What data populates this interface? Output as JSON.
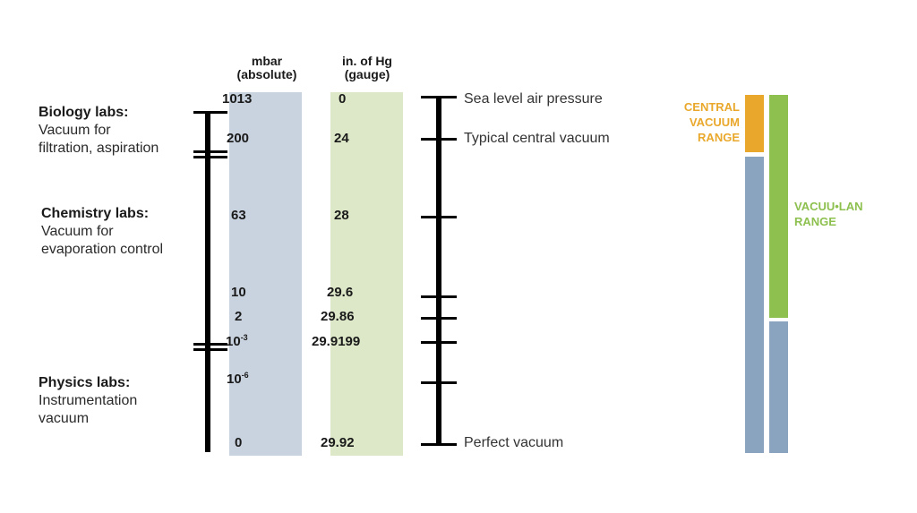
{
  "columns": {
    "mbar": {
      "line1": "mbar",
      "line2": "(absolute)"
    },
    "inhg": {
      "line1": "in. of Hg",
      "line2": "(gauge)"
    }
  },
  "rows": [
    {
      "mbar": "1013",
      "mbar_exp": "",
      "inhg": "0",
      "note": "Sea level air pressure"
    },
    {
      "mbar": "200",
      "mbar_exp": "",
      "inhg": "24",
      "note": "Typical central vacuum"
    },
    {
      "mbar": "63",
      "mbar_exp": "",
      "inhg": "28",
      "note": ""
    },
    {
      "mbar": "10",
      "mbar_exp": "",
      "inhg": "29.6",
      "note": ""
    },
    {
      "mbar": "2",
      "mbar_exp": "",
      "inhg": "29.86",
      "note": ""
    },
    {
      "mbar": "10",
      "mbar_exp": "-3",
      "inhg": "29.9199",
      "note": ""
    },
    {
      "mbar": "10",
      "mbar_exp": "-6",
      "inhg": "",
      "note": ""
    },
    {
      "mbar": "0",
      "mbar_exp": "",
      "inhg": "29.92",
      "note": "Perfect vacuum"
    }
  ],
  "labs": [
    {
      "title": "Biology labs:",
      "desc1": "Vacuum for",
      "desc2": "filtration, aspiration"
    },
    {
      "title": "Chemistry labs:",
      "desc1": "Vacuum for",
      "desc2": "evaporation control"
    },
    {
      "title": "Physics labs:",
      "desc1": "Instrumentation",
      "desc2": "vacuum"
    }
  ],
  "ranges": {
    "central": {
      "line1": "CENTRAL",
      "line2": "VACUUM",
      "line3": "RANGE",
      "color": "#E9A82B"
    },
    "vacuulan": {
      "line1": "VACUU•LAN",
      "line2": "RANGE",
      "color": "#8DC04F"
    },
    "extended_color": "#8AA4BF"
  },
  "colors": {
    "mbar_band": "#C9D3DF",
    "inhg_band": "#DCE8C8"
  }
}
